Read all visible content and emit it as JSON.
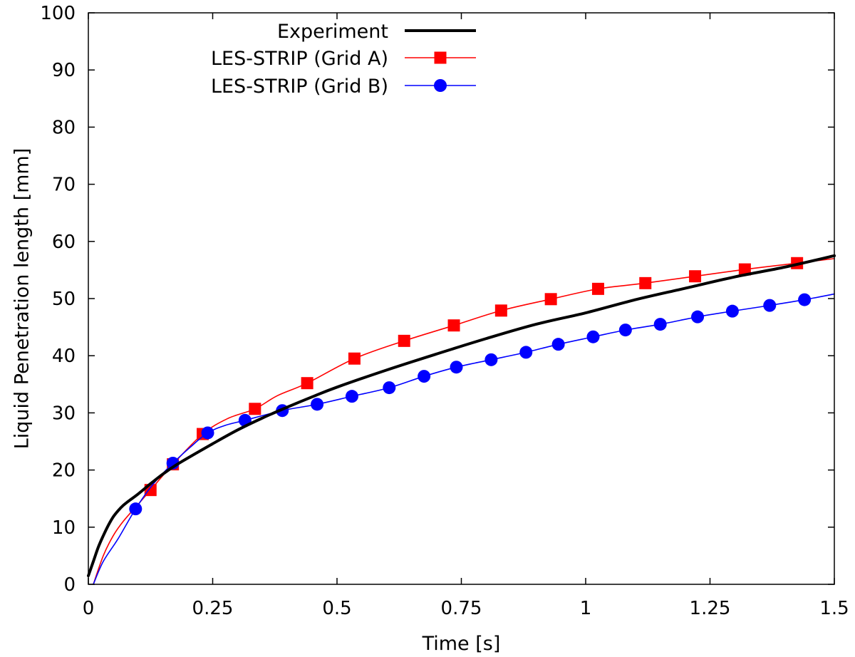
{
  "chart_data": {
    "type": "line",
    "title": "",
    "xlabel": "Time [s]",
    "ylabel": "Liquid Penetration length [mm]",
    "xlim": [
      0,
      1.5
    ],
    "ylim": [
      0,
      100
    ],
    "xticks": [
      0,
      0.25,
      0.5,
      0.75,
      1,
      1.25,
      1.5
    ],
    "xtick_labels": [
      "0",
      "0.25",
      "0.5",
      "0.75",
      "1",
      "1.25",
      "1.5"
    ],
    "yticks": [
      0,
      10,
      20,
      30,
      40,
      50,
      60,
      70,
      80,
      90,
      100
    ],
    "ytick_labels": [
      "0",
      "10",
      "20",
      "30",
      "40",
      "50",
      "60",
      "70",
      "80",
      "90",
      "100"
    ],
    "grid": false,
    "legend_position": "top-right",
    "series": [
      {
        "name": "Experiment",
        "color": "#000000",
        "marker": "none",
        "x": [
          0.0,
          0.01,
          0.02,
          0.03,
          0.04,
          0.05,
          0.06,
          0.07,
          0.08,
          0.1,
          0.125,
          0.15,
          0.175,
          0.2,
          0.25,
          0.3,
          0.35,
          0.4,
          0.45,
          0.5,
          0.6,
          0.7,
          0.8,
          0.9,
          1.0,
          1.1,
          1.2,
          1.3,
          1.4,
          1.5
        ],
        "y": [
          1.5,
          4.0,
          6.5,
          8.5,
          10.3,
          11.8,
          12.9,
          13.8,
          14.5,
          15.8,
          17.6,
          19.3,
          20.8,
          22.1,
          24.6,
          27.0,
          29.1,
          31.0,
          32.8,
          34.5,
          37.5,
          40.3,
          43.0,
          45.5,
          47.5,
          49.8,
          51.8,
          53.8,
          55.5,
          57.5
        ]
      },
      {
        "name": "LES-STRIP (Grid A)",
        "color": "#ff0000",
        "marker": "square",
        "x": [
          0.01,
          0.03,
          0.05,
          0.07,
          0.1,
          0.125,
          0.17,
          0.23,
          0.28,
          0.335,
          0.38,
          0.44,
          0.535,
          0.635,
          0.735,
          0.83,
          0.93,
          1.025,
          1.12,
          1.22,
          1.32,
          1.425,
          1.5
        ],
        "y": [
          0.0,
          5.0,
          8.5,
          11.0,
          14.0,
          16.5,
          21.0,
          26.3,
          29.0,
          30.7,
          33.0,
          35.2,
          39.5,
          42.6,
          45.3,
          47.9,
          49.9,
          51.7,
          52.7,
          53.9,
          55.1,
          56.2,
          57.0
        ],
        "marker_x": [
          0.125,
          0.17,
          0.23,
          0.335,
          0.44,
          0.535,
          0.635,
          0.735,
          0.83,
          0.93,
          1.025,
          1.12,
          1.22,
          1.32,
          1.425
        ],
        "marker_y": [
          16.5,
          21.0,
          26.3,
          30.7,
          35.2,
          39.5,
          42.6,
          45.3,
          47.9,
          49.9,
          51.7,
          52.7,
          53.9,
          55.1,
          56.2
        ]
      },
      {
        "name": "LES-STRIP (Grid B)",
        "color": "#0000ff",
        "marker": "circle",
        "x": [
          0.01,
          0.03,
          0.06,
          0.095,
          0.13,
          0.17,
          0.205,
          0.24,
          0.275,
          0.315,
          0.39,
          0.46,
          0.53,
          0.605,
          0.675,
          0.74,
          0.81,
          0.88,
          0.945,
          1.015,
          1.08,
          1.15,
          1.225,
          1.295,
          1.37,
          1.44,
          1.5
        ],
        "y": [
          0.0,
          4.0,
          8.0,
          13.2,
          17.5,
          21.2,
          24.0,
          26.5,
          27.8,
          28.7,
          30.4,
          31.5,
          32.9,
          34.4,
          36.4,
          38.0,
          39.3,
          40.6,
          42.0,
          43.3,
          44.5,
          45.5,
          46.8,
          47.8,
          48.8,
          49.8,
          50.8
        ],
        "marker_x": [
          0.095,
          0.17,
          0.24,
          0.315,
          0.39,
          0.46,
          0.53,
          0.605,
          0.675,
          0.74,
          0.81,
          0.88,
          0.945,
          1.015,
          1.08,
          1.15,
          1.225,
          1.295,
          1.37,
          1.44
        ],
        "marker_y": [
          13.2,
          21.2,
          26.5,
          28.7,
          30.4,
          31.5,
          32.9,
          34.4,
          36.4,
          38.0,
          39.3,
          40.6,
          42.0,
          43.3,
          44.5,
          45.5,
          46.8,
          47.8,
          48.8,
          49.8
        ]
      }
    ]
  }
}
